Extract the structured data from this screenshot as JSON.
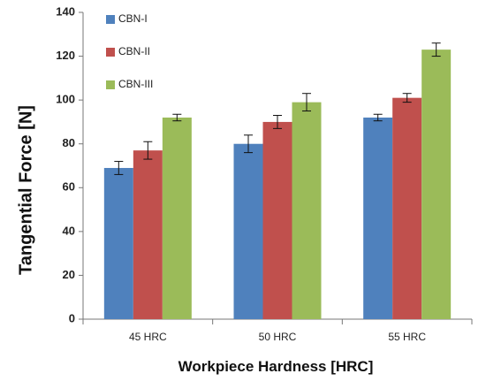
{
  "chart_data": {
    "type": "bar",
    "categories": [
      "45 HRC",
      "50 HRC",
      "55 HRC"
    ],
    "series": [
      {
        "name": "CBN-I",
        "color": "#4F81BD",
        "values": [
          69,
          80,
          92
        ],
        "errors": [
          3,
          4,
          1.5
        ]
      },
      {
        "name": "CBN-II",
        "color": "#C0504D",
        "values": [
          77,
          90,
          101
        ],
        "errors": [
          4,
          3,
          2
        ]
      },
      {
        "name": "CBN-III",
        "color": "#9BBB59",
        "values": [
          92,
          99,
          123
        ],
        "errors": [
          1.5,
          4,
          3
        ]
      }
    ],
    "xlabel": "Workpiece Hardness [HRC]",
    "ylabel": "Tangential Force [N]",
    "ylim": [
      0,
      140
    ],
    "yticks": [
      "0",
      "20",
      "40",
      "60",
      "80",
      "100",
      "120",
      "140"
    ],
    "grid": false,
    "legend_position": "top-left",
    "error_bars": true
  }
}
